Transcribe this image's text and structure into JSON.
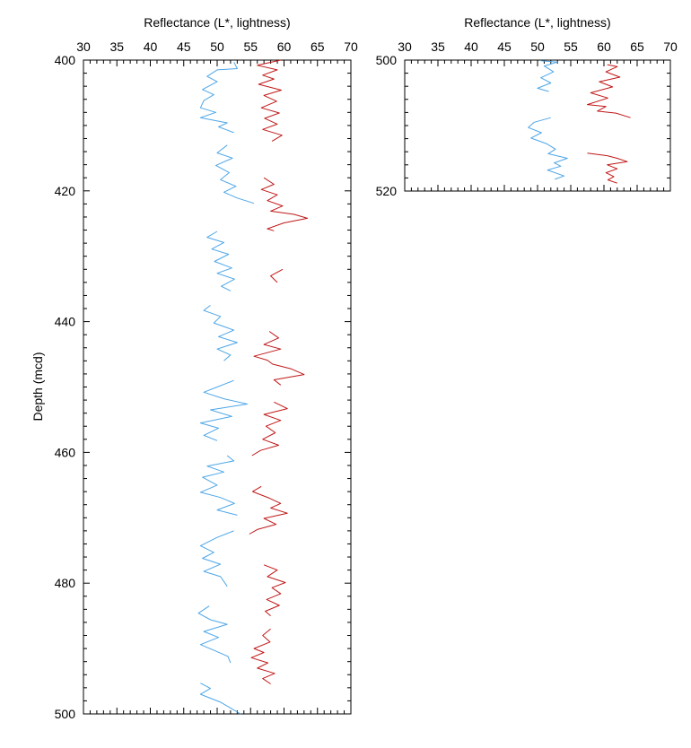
{
  "chart_data": [
    {
      "type": "line",
      "xlabel": "Reflectance (L*, lightness)",
      "ylabel": "Depth (mcd)",
      "xlim": [
        30,
        70
      ],
      "ylim": [
        400,
        500
      ],
      "y_inverted": true,
      "x_axis_position": "top",
      "x_ticks": [
        "30",
        "35",
        "40",
        "45",
        "50",
        "55",
        "60",
        "65",
        "70"
      ],
      "y_ticks": [
        "400",
        "420",
        "440",
        "460",
        "480",
        "500"
      ],
      "series_colors": [
        "#4da6e8",
        "#c01818"
      ],
      "series": [
        {
          "segments": [
            [
              [
                52.5,
                400.3
              ],
              [
                53.0,
                401.3
              ],
              [
                50.0,
                401.5
              ],
              [
                48.5,
                402.5
              ],
              [
                50.0,
                403.3
              ],
              [
                47.8,
                404.5
              ],
              [
                49.5,
                405.3
              ],
              [
                48.0,
                406.2
              ],
              [
                47.5,
                407.3
              ],
              [
                49.8,
                408.0
              ],
              [
                47.5,
                408.8
              ],
              [
                51.5,
                409.6
              ],
              [
                50.2,
                410.2
              ],
              [
                52.5,
                411.1
              ]
            ],
            [
              [
                51.5,
                413.0
              ],
              [
                50.0,
                414.2
              ],
              [
                52.3,
                415.0
              ],
              [
                49.8,
                416.1
              ],
              [
                51.8,
                417.2
              ],
              [
                50.5,
                418.3
              ],
              [
                52.8,
                419.3
              ],
              [
                51.0,
                420.2
              ],
              [
                53.0,
                421.1
              ],
              [
                55.5,
                421.9
              ]
            ],
            [
              [
                50.0,
                426.2
              ],
              [
                48.5,
                427.1
              ],
              [
                51.0,
                427.9
              ],
              [
                49.2,
                428.9
              ],
              [
                51.7,
                429.7
              ],
              [
                49.6,
                430.8
              ],
              [
                52.2,
                431.8
              ],
              [
                50.0,
                432.6
              ],
              [
                52.6,
                433.5
              ],
              [
                50.6,
                434.6
              ],
              [
                52.0,
                435.3
              ]
            ],
            [
              [
                49.0,
                437.5
              ],
              [
                48.0,
                438.3
              ],
              [
                50.5,
                439.2
              ],
              [
                49.5,
                440.2
              ],
              [
                52.5,
                441.3
              ],
              [
                50.2,
                442.3
              ],
              [
                53.0,
                443.2
              ],
              [
                50.0,
                444.2
              ],
              [
                52.0,
                445.1
              ],
              [
                51.0,
                446.0
              ]
            ],
            [
              [
                52.5,
                449.0
              ],
              [
                50.0,
                450.0
              ],
              [
                48.0,
                450.8
              ],
              [
                51.0,
                451.8
              ],
              [
                54.5,
                452.6
              ],
              [
                49.0,
                453.5
              ],
              [
                52.2,
                454.5
              ],
              [
                47.5,
                455.5
              ],
              [
                50.2,
                456.3
              ],
              [
                48.0,
                457.4
              ],
              [
                50.0,
                458.2
              ]
            ],
            [
              [
                51.5,
                460.5
              ],
              [
                52.5,
                461.3
              ],
              [
                48.5,
                462.1
              ],
              [
                51.0,
                463.0
              ],
              [
                47.8,
                463.8
              ],
              [
                50.0,
                465.0
              ],
              [
                47.5,
                466.1
              ],
              [
                50.5,
                466.9
              ],
              [
                52.6,
                467.8
              ],
              [
                50.0,
                468.8
              ],
              [
                53.0,
                469.6
              ]
            ],
            [
              [
                52.5,
                472.0
              ],
              [
                50.0,
                473.0
              ],
              [
                47.5,
                474.3
              ],
              [
                49.5,
                475.3
              ],
              [
                47.8,
                476.2
              ],
              [
                50.5,
                477.1
              ],
              [
                48.0,
                478.2
              ],
              [
                50.5,
                479.0
              ],
              [
                51.5,
                480.5
              ]
            ],
            [
              [
                48.8,
                483.5
              ],
              [
                47.2,
                484.6
              ],
              [
                49.0,
                485.6
              ],
              [
                51.5,
                486.3
              ],
              [
                48.0,
                487.4
              ],
              [
                50.2,
                488.3
              ],
              [
                47.5,
                489.4
              ],
              [
                49.6,
                490.3
              ],
              [
                51.6,
                491.2
              ],
              [
                52.0,
                492.2
              ]
            ],
            [
              [
                47.5,
                495.3
              ],
              [
                49.0,
                496.1
              ],
              [
                47.5,
                497.0
              ],
              [
                50.5,
                498.2
              ],
              [
                53.5,
                500.0
              ]
            ]
          ]
        },
        {
          "segments": [
            [
              [
                59.5,
                400.0
              ],
              [
                56.0,
                400.8
              ],
              [
                59.0,
                401.5
              ],
              [
                56.8,
                402.3
              ],
              [
                58.5,
                402.9
              ],
              [
                56.2,
                403.7
              ],
              [
                59.6,
                404.6
              ],
              [
                57.0,
                405.4
              ],
              [
                58.9,
                406.3
              ],
              [
                56.6,
                407.3
              ],
              [
                59.3,
                408.1
              ],
              [
                57.1,
                408.9
              ],
              [
                59.0,
                409.8
              ],
              [
                56.8,
                410.6
              ],
              [
                59.7,
                411.5
              ],
              [
                58.2,
                412.4
              ]
            ],
            [
              [
                57.0,
                418.0
              ],
              [
                58.5,
                419.0
              ],
              [
                56.6,
                419.8
              ],
              [
                59.0,
                420.6
              ],
              [
                57.5,
                421.5
              ],
              [
                59.8,
                422.3
              ],
              [
                58.0,
                423.1
              ],
              [
                61.5,
                423.6
              ],
              [
                63.5,
                424.2
              ],
              [
                60.0,
                424.9
              ],
              [
                57.5,
                425.8
              ],
              [
                58.5,
                426.1
              ]
            ],
            [
              [
                59.8,
                432.0
              ],
              [
                58.0,
                433.0
              ],
              [
                59.0,
                434.0
              ]
            ],
            [
              [
                57.8,
                441.5
              ],
              [
                59.2,
                442.5
              ],
              [
                57.0,
                443.5
              ],
              [
                59.5,
                444.2
              ],
              [
                55.5,
                445.3
              ],
              [
                57.5,
                445.9
              ],
              [
                58.3,
                446.5
              ],
              [
                61.0,
                447.2
              ],
              [
                63.0,
                448.1
              ],
              [
                58.5,
                448.9
              ],
              [
                59.5,
                449.7
              ]
            ],
            [
              [
                58.5,
                452.3
              ],
              [
                60.5,
                453.3
              ],
              [
                57.0,
                454.2
              ],
              [
                59.5,
                455.1
              ],
              [
                57.3,
                456.0
              ],
              [
                58.7,
                457.0
              ],
              [
                56.8,
                458.0
              ],
              [
                59.2,
                458.9
              ],
              [
                56.5,
                459.7
              ],
              [
                55.2,
                460.5
              ]
            ],
            [
              [
                56.6,
                465.2
              ],
              [
                55.3,
                466.0
              ],
              [
                57.8,
                467.0
              ],
              [
                59.5,
                467.8
              ],
              [
                58.0,
                468.5
              ],
              [
                60.5,
                469.3
              ],
              [
                57.0,
                470.1
              ],
              [
                58.8,
                471.0
              ],
              [
                56.0,
                471.8
              ],
              [
                54.8,
                472.5
              ]
            ],
            [
              [
                57.0,
                477.2
              ],
              [
                59.0,
                478.0
              ],
              [
                57.5,
                479.0
              ],
              [
                60.2,
                479.9
              ],
              [
                58.2,
                480.7
              ],
              [
                59.5,
                481.6
              ],
              [
                57.4,
                482.5
              ],
              [
                59.3,
                483.4
              ],
              [
                57.2,
                484.3
              ],
              [
                58.0,
                485.0
              ]
            ],
            [
              [
                58.0,
                487.0
              ],
              [
                56.8,
                488.0
              ],
              [
                57.9,
                489.0
              ],
              [
                55.5,
                490.0
              ],
              [
                57.0,
                490.6
              ],
              [
                55.1,
                491.4
              ],
              [
                57.6,
                492.2
              ],
              [
                56.0,
                493.0
              ],
              [
                58.6,
                493.8
              ],
              [
                56.8,
                494.6
              ],
              [
                58.0,
                495.4
              ]
            ]
          ]
        }
      ]
    },
    {
      "type": "line",
      "xlabel": "Reflectance (L*, lightness)",
      "xlim": [
        30,
        70
      ],
      "ylim": [
        500,
        520
      ],
      "y_inverted": true,
      "x_axis_position": "top",
      "x_ticks": [
        "30",
        "35",
        "40",
        "45",
        "50",
        "55",
        "60",
        "65",
        "70"
      ],
      "y_ticks": [
        "500",
        "520"
      ],
      "series_colors": [
        "#4da6e8",
        "#c01818"
      ],
      "series": [
        {
          "segments": [
            [
              [
                50.5,
                500.1
              ],
              [
                53.0,
                500.3
              ],
              [
                51.0,
                500.9
              ],
              [
                52.4,
                501.8
              ],
              [
                50.5,
                502.7
              ],
              [
                52.0,
                503.5
              ],
              [
                50.0,
                504.3
              ],
              [
                51.7,
                504.8
              ]
            ],
            [
              [
                52.0,
                508.8
              ],
              [
                49.5,
                509.5
              ],
              [
                48.6,
                510.3
              ],
              [
                50.6,
                511.1
              ],
              [
                49.0,
                511.9
              ],
              [
                51.4,
                512.8
              ],
              [
                52.7,
                513.6
              ],
              [
                51.6,
                514.3
              ],
              [
                54.5,
                515.0
              ],
              [
                52.5,
                515.7
              ],
              [
                53.5,
                516.2
              ],
              [
                51.5,
                516.8
              ],
              [
                54.0,
                517.7
              ],
              [
                52.6,
                518.2
              ]
            ]
          ]
        },
        {
          "segments": [
            [
              [
                60.5,
                500.7
              ],
              [
                62.0,
                501.0
              ],
              [
                60.3,
                501.8
              ],
              [
                62.4,
                502.6
              ],
              [
                59.3,
                503.3
              ],
              [
                61.3,
                504.1
              ],
              [
                58.0,
                505.0
              ],
              [
                60.6,
                505.8
              ],
              [
                57.5,
                506.8
              ],
              [
                60.3,
                507.1
              ],
              [
                59.0,
                507.8
              ],
              [
                61.8,
                508.1
              ],
              [
                64.0,
                508.8
              ]
            ],
            [
              [
                57.5,
                514.2
              ],
              [
                60.5,
                514.6
              ],
              [
                62.0,
                515.0
              ],
              [
                63.5,
                515.5
              ],
              [
                60.5,
                516.0
              ],
              [
                62.0,
                516.6
              ],
              [
                60.3,
                517.2
              ],
              [
                61.5,
                517.8
              ],
              [
                60.6,
                518.3
              ],
              [
                62.0,
                518.8
              ]
            ]
          ]
        }
      ]
    }
  ]
}
